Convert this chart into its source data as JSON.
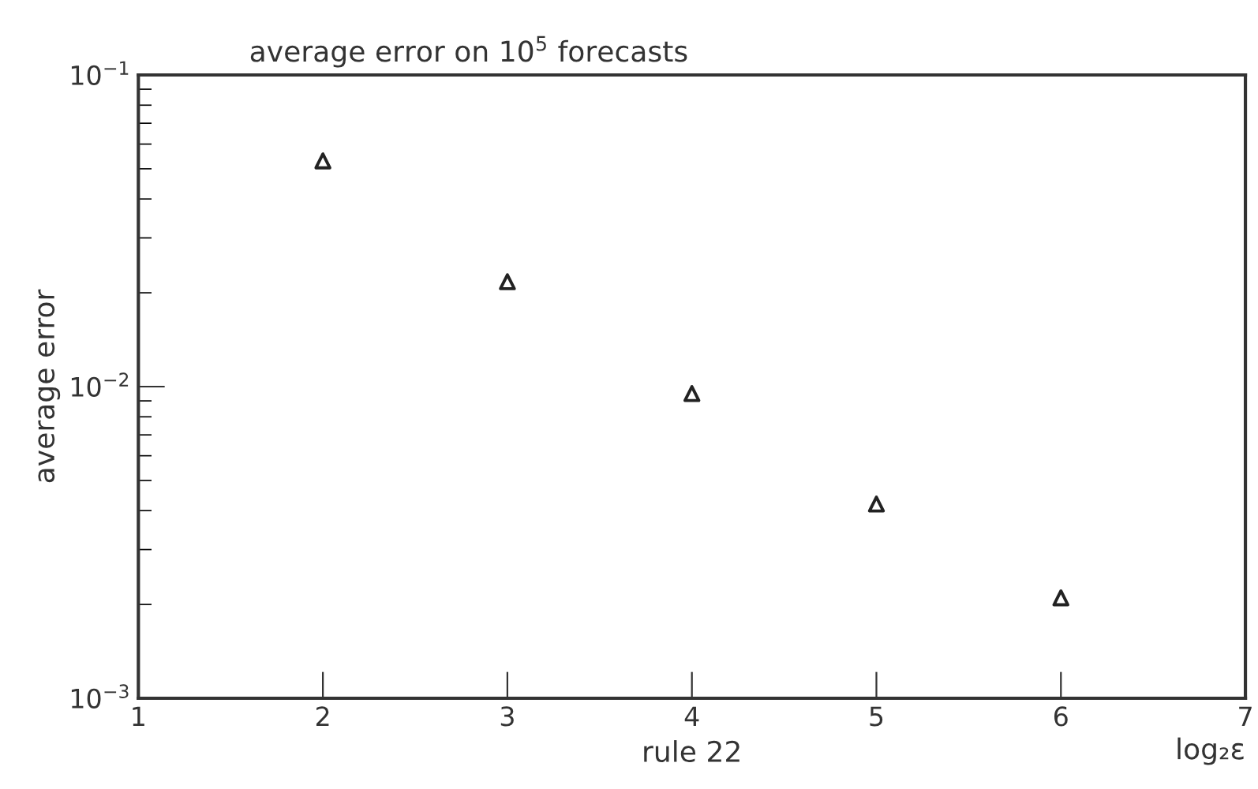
{
  "chart_data": {
    "type": "scatter",
    "title": "average error on 10$^{5}$ forecasts",
    "xlabel": "rule 22",
    "ylabel": "average error",
    "annotations": [
      "log₂ε"
    ],
    "x": [
      2,
      3,
      4,
      5,
      6
    ],
    "series": [
      {
        "color": "#222222",
        "values": [
          0.053,
          0.0217,
          0.0095,
          0.0042,
          0.0021
        ]
      }
    ],
    "marker": "triangle",
    "log": "y",
    "grid": false,
    "legend": false,
    "xlim": [
      1,
      7
    ],
    "xticks": [
      1,
      2,
      3,
      4,
      5,
      6,
      7
    ],
    "ylim": [
      0.001,
      0.1
    ],
    "yticks": [
      {
        "value": 0.001,
        "label": "10$^{−3}$"
      },
      {
        "value": 0.01,
        "label": "10$^{−2}$"
      },
      {
        "value": 0.1,
        "label": "10$^{−1}$"
      }
    ]
  }
}
